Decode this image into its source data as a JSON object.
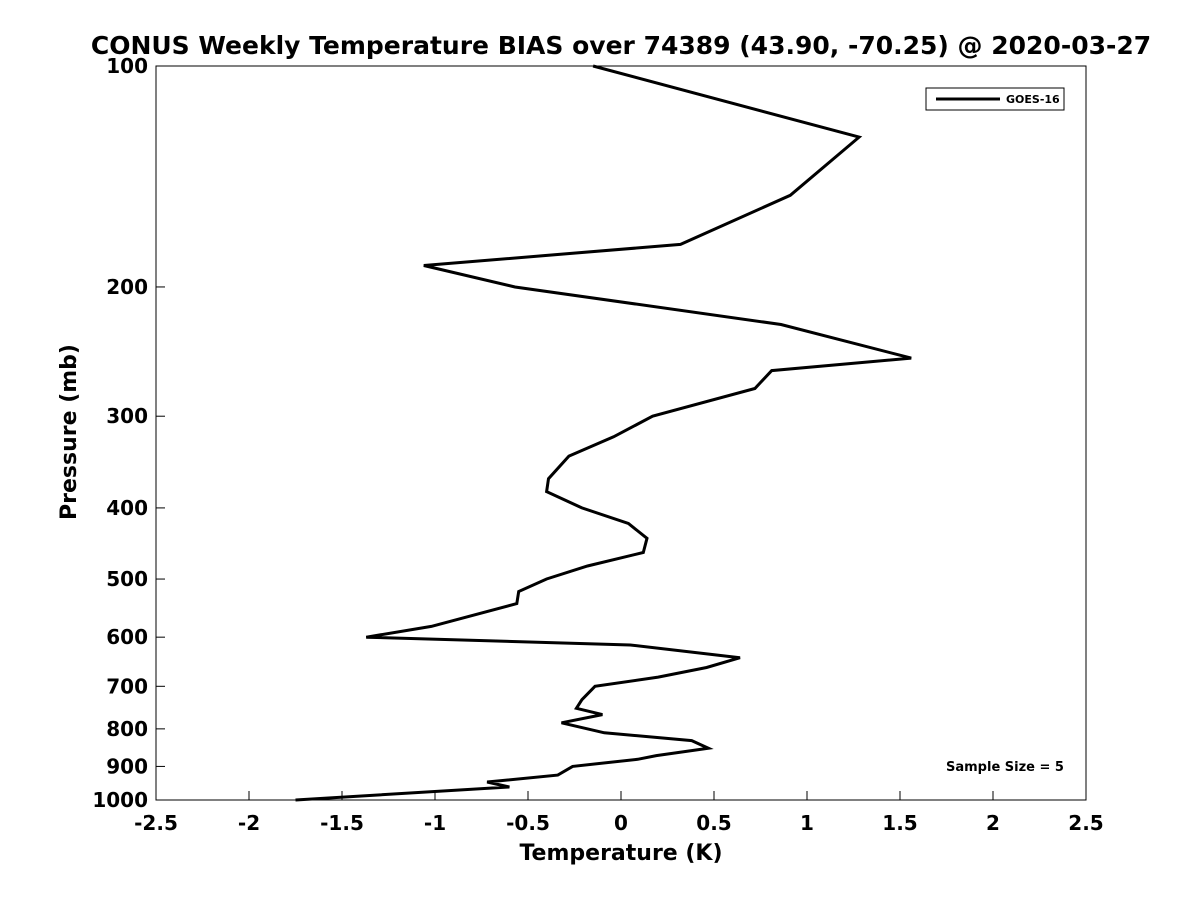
{
  "chart_data": {
    "type": "line",
    "title": "CONUS Weekly Temperature BIAS over 74389 (43.90, -70.25) @ 2020-03-27",
    "xlabel": "Temperature (K)",
    "ylabel": "Pressure (mb)",
    "xlim": [
      -2.5,
      2.5
    ],
    "ylim": [
      1000,
      100
    ],
    "yscale": "log",
    "x_ticks": [
      "-2.5",
      "-2",
      "-1.5",
      "-1",
      "-0.5",
      "0",
      "0.5",
      "1",
      "1.5",
      "2",
      "2.5"
    ],
    "y_ticks": [
      "100",
      "200",
      "300",
      "400",
      "500",
      "600",
      "700",
      "800",
      "900",
      "1000"
    ],
    "grid": false,
    "legend": {
      "placement": "top-right",
      "entries": [
        "GOES-16"
      ]
    },
    "annotation": "Sample Size = 5",
    "series": [
      {
        "name": "GOES-16",
        "color": "#000000",
        "points": [
          {
            "x": -0.15,
            "p": 100
          },
          {
            "x": 1.28,
            "p": 125
          },
          {
            "x": 0.91,
            "p": 150
          },
          {
            "x": 0.32,
            "p": 175
          },
          {
            "x": -1.06,
            "p": 187
          },
          {
            "x": -0.57,
            "p": 200
          },
          {
            "x": 0.86,
            "p": 225
          },
          {
            "x": 1.56,
            "p": 250
          },
          {
            "x": 0.81,
            "p": 260
          },
          {
            "x": 0.72,
            "p": 275
          },
          {
            "x": 0.17,
            "p": 300
          },
          {
            "x": -0.04,
            "p": 320
          },
          {
            "x": -0.28,
            "p": 340
          },
          {
            "x": -0.39,
            "p": 365
          },
          {
            "x": -0.4,
            "p": 380
          },
          {
            "x": -0.21,
            "p": 400
          },
          {
            "x": 0.04,
            "p": 420
          },
          {
            "x": 0.14,
            "p": 440
          },
          {
            "x": 0.12,
            "p": 460
          },
          {
            "x": -0.18,
            "p": 480
          },
          {
            "x": -0.4,
            "p": 500
          },
          {
            "x": -0.55,
            "p": 520
          },
          {
            "x": -0.56,
            "p": 540
          },
          {
            "x": -1.02,
            "p": 580
          },
          {
            "x": -1.37,
            "p": 600
          },
          {
            "x": 0.05,
            "p": 615
          },
          {
            "x": 0.64,
            "p": 640
          },
          {
            "x": 0.46,
            "p": 660
          },
          {
            "x": 0.2,
            "p": 680
          },
          {
            "x": -0.14,
            "p": 700
          },
          {
            "x": -0.21,
            "p": 730
          },
          {
            "x": -0.24,
            "p": 750
          },
          {
            "x": -0.1,
            "p": 765
          },
          {
            "x": -0.32,
            "p": 785
          },
          {
            "x": -0.09,
            "p": 810
          },
          {
            "x": 0.38,
            "p": 830
          },
          {
            "x": 0.47,
            "p": 850
          },
          {
            "x": 0.19,
            "p": 870
          },
          {
            "x": 0.09,
            "p": 880
          },
          {
            "x": -0.26,
            "p": 900
          },
          {
            "x": -0.34,
            "p": 925
          },
          {
            "x": -0.72,
            "p": 945
          },
          {
            "x": -0.6,
            "p": 960
          },
          {
            "x": -1.75,
            "p": 1000
          }
        ]
      }
    ]
  }
}
